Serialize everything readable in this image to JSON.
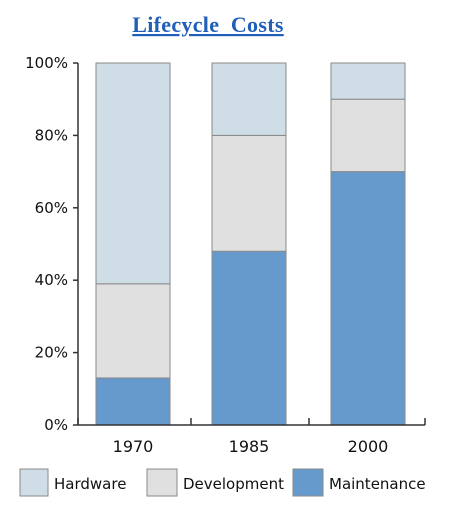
{
  "chart_data": {
    "type": "bar",
    "stacked": true,
    "percent": true,
    "title": "Lifecycle  Costs",
    "categories": [
      "1970",
      "1985",
      "2000"
    ],
    "series": [
      {
        "name": "Maintenance",
        "values": [
          13,
          48,
          70
        ],
        "color": "#6699cc"
      },
      {
        "name": "Development",
        "values": [
          26,
          32,
          20
        ],
        "color": "#e0e0e0"
      },
      {
        "name": "Hardware",
        "values": [
          61,
          20,
          10
        ],
        "color": "#cfdde6"
      }
    ],
    "legend_order": [
      "Hardware",
      "Development",
      "Maintenance"
    ],
    "yticks": [
      "0%",
      "20%",
      "40%",
      "60%",
      "80%",
      "100%"
    ],
    "ylim": [
      0,
      100
    ],
    "xlabel": "",
    "ylabel": "",
    "grid": false,
    "legend_position": "bottom"
  }
}
